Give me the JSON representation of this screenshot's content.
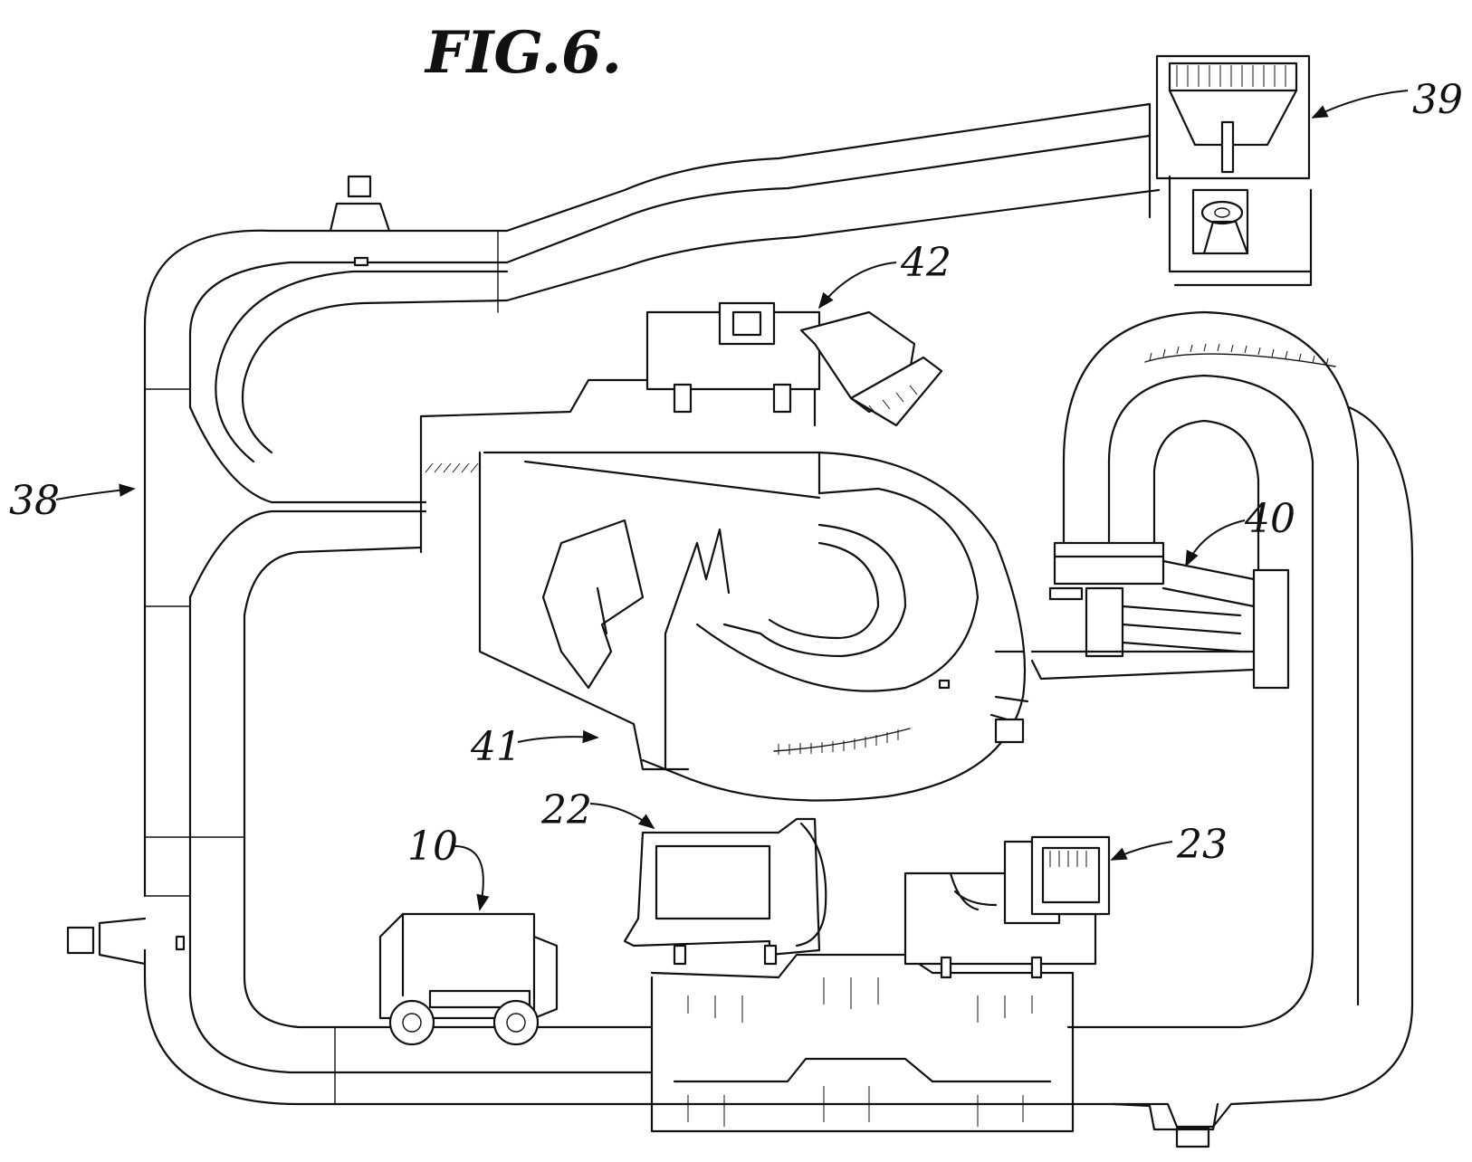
{
  "figure": {
    "title": "FIG.6."
  },
  "labels": {
    "ref_38": "38",
    "ref_39": "39",
    "ref_40": "40",
    "ref_41": "41",
    "ref_42": "42",
    "ref_22": "22",
    "ref_10": "10",
    "ref_23": "23"
  }
}
